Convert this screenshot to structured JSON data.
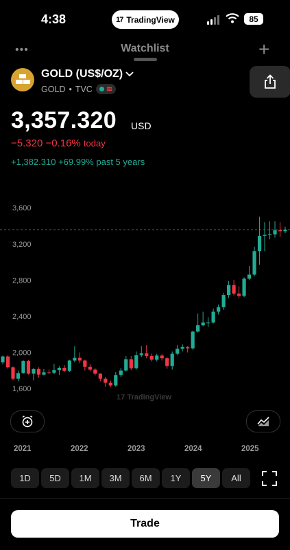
{
  "status_bar": {
    "time": "4:38",
    "pill_label": "TradingView",
    "battery": "85"
  },
  "background_nav": {
    "title": "Watchlist"
  },
  "symbol": {
    "title": "GOLD (US$/OZ)",
    "ticker": "GOLD",
    "exchange": "TVC",
    "price": "3,357.320",
    "currency": "USD",
    "change_abs": "−5.320",
    "change_pct": "−0.16%",
    "change_period": "today",
    "perf_abs": "+1,382.310",
    "perf_pct": "+69.99%",
    "perf_period": "past 5 years"
  },
  "colors": {
    "up": "#22ab94",
    "down": "#f23645",
    "gold_icon": "#d8a431"
  },
  "chart_data": {
    "type": "candlestick",
    "watermark": "TradingView",
    "y_ticks": [
      "3,600",
      "3,200",
      "2,800",
      "2,400",
      "2,000",
      "1,600"
    ],
    "x_ticks": [
      "2021",
      "2022",
      "2023",
      "2024",
      "2025"
    ],
    "ylim": [
      1480,
      3700
    ],
    "last_price": 3357.32,
    "candles": [
      {
        "o": 1890,
        "c": 1955,
        "h": 1965,
        "l": 1870
      },
      {
        "o": 1955,
        "c": 1835,
        "h": 1970,
        "l": 1820
      },
      {
        "o": 1835,
        "c": 1710,
        "h": 1845,
        "l": 1690
      },
      {
        "o": 1710,
        "c": 1770,
        "h": 1800,
        "l": 1680
      },
      {
        "o": 1770,
        "c": 1905,
        "h": 1915,
        "l": 1765
      },
      {
        "o": 1905,
        "c": 1765,
        "h": 1915,
        "l": 1755
      },
      {
        "o": 1765,
        "c": 1815,
        "h": 1830,
        "l": 1690
      },
      {
        "o": 1815,
        "c": 1755,
        "h": 1835,
        "l": 1720
      },
      {
        "o": 1755,
        "c": 1780,
        "h": 1815,
        "l": 1745
      },
      {
        "o": 1780,
        "c": 1775,
        "h": 1810,
        "l": 1760
      },
      {
        "o": 1775,
        "c": 1805,
        "h": 1875,
        "l": 1760
      },
      {
        "o": 1805,
        "c": 1830,
        "h": 1850,
        "l": 1750
      },
      {
        "o": 1830,
        "c": 1795,
        "h": 1860,
        "l": 1785
      },
      {
        "o": 1795,
        "c": 1910,
        "h": 1920,
        "l": 1785
      },
      {
        "o": 1910,
        "c": 1940,
        "h": 2070,
        "l": 1890
      },
      {
        "o": 1940,
        "c": 1910,
        "h": 2000,
        "l": 1880
      },
      {
        "o": 1910,
        "c": 1840,
        "h": 1920,
        "l": 1800
      },
      {
        "o": 1840,
        "c": 1810,
        "h": 1870,
        "l": 1790
      },
      {
        "o": 1810,
        "c": 1765,
        "h": 1825,
        "l": 1745
      },
      {
        "o": 1765,
        "c": 1710,
        "h": 1770,
        "l": 1680
      },
      {
        "o": 1710,
        "c": 1665,
        "h": 1730,
        "l": 1620
      },
      {
        "o": 1665,
        "c": 1635,
        "h": 1690,
        "l": 1615
      },
      {
        "o": 1635,
        "c": 1750,
        "h": 1785,
        "l": 1620
      },
      {
        "o": 1750,
        "c": 1800,
        "h": 1830,
        "l": 1730
      },
      {
        "o": 1800,
        "c": 1925,
        "h": 1960,
        "l": 1790
      },
      {
        "o": 1925,
        "c": 1825,
        "h": 1960,
        "l": 1805
      },
      {
        "o": 1825,
        "c": 1970,
        "h": 2010,
        "l": 1810
      },
      {
        "o": 1970,
        "c": 1990,
        "h": 2070,
        "l": 1950
      },
      {
        "o": 1990,
        "c": 1960,
        "h": 2080,
        "l": 1935
      },
      {
        "o": 1960,
        "c": 1920,
        "h": 1985,
        "l": 1900
      },
      {
        "o": 1920,
        "c": 1965,
        "h": 1985,
        "l": 1900
      },
      {
        "o": 1965,
        "c": 1935,
        "h": 1980,
        "l": 1910
      },
      {
        "o": 1935,
        "c": 1850,
        "h": 1950,
        "l": 1820
      },
      {
        "o": 1850,
        "c": 1985,
        "h": 2010,
        "l": 1810
      },
      {
        "o": 1985,
        "c": 2040,
        "h": 2080,
        "l": 1970
      },
      {
        "o": 2040,
        "c": 2060,
        "h": 2090,
        "l": 2010
      },
      {
        "o": 2060,
        "c": 2045,
        "h": 2070,
        "l": 2000
      },
      {
        "o": 2045,
        "c": 2230,
        "h": 2240,
        "l": 2030
      },
      {
        "o": 2230,
        "c": 2300,
        "h": 2430,
        "l": 2220
      },
      {
        "o": 2300,
        "c": 2330,
        "h": 2450,
        "l": 2290
      },
      {
        "o": 2330,
        "c": 2330,
        "h": 2390,
        "l": 2280
      },
      {
        "o": 2330,
        "c": 2450,
        "h": 2485,
        "l": 2320
      },
      {
        "o": 2450,
        "c": 2500,
        "h": 2530,
        "l": 2420
      },
      {
        "o": 2500,
        "c": 2635,
        "h": 2660,
        "l": 2470
      },
      {
        "o": 2635,
        "c": 2745,
        "h": 2790,
        "l": 2600
      },
      {
        "o": 2745,
        "c": 2650,
        "h": 2800,
        "l": 2630
      },
      {
        "o": 2650,
        "c": 2625,
        "h": 2730,
        "l": 2600
      },
      {
        "o": 2625,
        "c": 2815,
        "h": 2830,
        "l": 2610
      },
      {
        "o": 2815,
        "c": 2860,
        "h": 2955,
        "l": 2800
      },
      {
        "o": 2860,
        "c": 3120,
        "h": 3170,
        "l": 2840
      },
      {
        "o": 3120,
        "c": 3290,
        "h": 3500,
        "l": 2970
      },
      {
        "o": 3290,
        "c": 3300,
        "h": 3440,
        "l": 3120
      },
      {
        "o": 3300,
        "c": 3305,
        "h": 3450,
        "l": 3250
      },
      {
        "o": 3305,
        "c": 3350,
        "h": 3450,
        "l": 3270
      },
      {
        "o": 3350,
        "c": 3340,
        "h": 3440,
        "l": 3280
      },
      {
        "o": 3340,
        "c": 3357,
        "h": 3390,
        "l": 3320
      }
    ]
  },
  "controls": {
    "ranges": [
      {
        "label": "1D",
        "active": false
      },
      {
        "label": "5D",
        "active": false
      },
      {
        "label": "1M",
        "active": false
      },
      {
        "label": "3M",
        "active": false
      },
      {
        "label": "6M",
        "active": false
      },
      {
        "label": "1Y",
        "active": false
      },
      {
        "label": "5Y",
        "active": true
      },
      {
        "label": "All",
        "active": false
      }
    ],
    "trade_label": "Trade"
  }
}
